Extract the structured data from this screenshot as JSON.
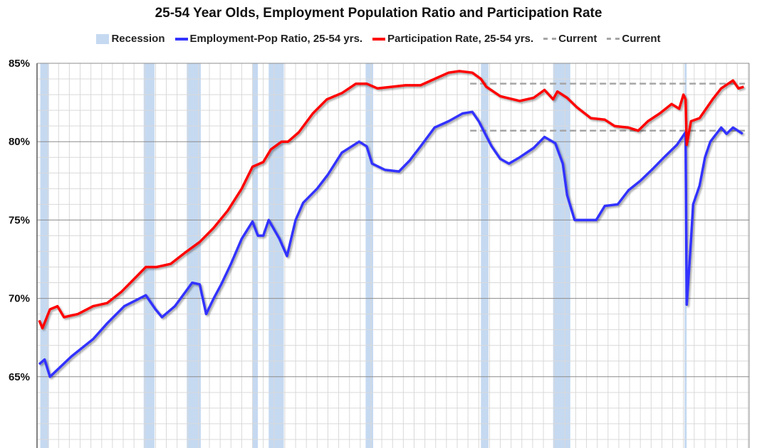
{
  "chart_data": {
    "type": "line",
    "title": "25-54 Year Olds, Employment Population Ratio and Participation Rate",
    "xlabel": "",
    "ylabel": "",
    "xlim": [
      1960,
      2026.1
    ],
    "ylim": [
      60,
      85
    ],
    "y_ticks": [
      "65%",
      "70%",
      "75%",
      "80%",
      "85%"
    ],
    "grid": true,
    "legend_placement": "top",
    "legend": [
      "Recession",
      "Employment-Pop Ratio, 25-54 yrs.",
      "Participation Rate, 25-54 yrs.",
      "Current",
      "Current"
    ],
    "colors": {
      "recession": "#c5d9f1",
      "epop": "#3333ff",
      "participation": "#ff0000",
      "current": "#a6a6a6"
    },
    "recessions": [
      [
        1960.3,
        1961.1
      ],
      [
        1969.9,
        1970.9
      ],
      [
        1973.9,
        1975.2
      ],
      [
        1980.0,
        1980.5
      ],
      [
        1981.5,
        1982.9
      ],
      [
        1990.5,
        1991.2
      ],
      [
        2001.2,
        2001.9
      ],
      [
        2007.9,
        2009.5
      ],
      [
        2020.1,
        2020.3
      ]
    ],
    "series": [
      {
        "name": "Employment-Pop Ratio, 25-54 yrs.",
        "color": "#3333ff",
        "x": [
          1960.2,
          1960.7,
          1961.2,
          1963.2,
          1965.2,
          1966.5,
          1968.1,
          1970.1,
          1971.0,
          1971.6,
          1972.8,
          1974.4,
          1975.1,
          1975.7,
          1976.4,
          1977.1,
          1978.0,
          1979.0,
          1980.0,
          1980.5,
          1981.0,
          1981.5,
          1982.5,
          1983.2,
          1984.0,
          1984.7,
          1986.0,
          1987.0,
          1988.3,
          1989.9,
          1990.6,
          1991.1,
          1992.3,
          1993.6,
          1994.6,
          1995.6,
          1996.9,
          1998.2,
          1999.5,
          2000.4,
          2001.0,
          2001.6,
          2002.2,
          2003.0,
          2003.8,
          2004.8,
          2006.1,
          2007.1,
          2008.1,
          2008.8,
          2009.2,
          2009.9,
          2011.0,
          2011.9,
          2012.7,
          2013.9,
          2014.9,
          2016.0,
          2017.2,
          2018.2,
          2019.4,
          2020.0,
          2020.2,
          2020.3,
          2020.7,
          2020.9,
          2021.5,
          2022.0,
          2022.5,
          2023.5,
          2024.0,
          2024.6,
          2025.5
        ],
        "y": [
          65.8,
          66.1,
          65.0,
          66.3,
          67.4,
          68.4,
          69.5,
          70.2,
          69.3,
          68.8,
          69.5,
          71.0,
          70.9,
          69.0,
          70.0,
          70.9,
          72.2,
          73.8,
          74.9,
          74.0,
          74.0,
          75.0,
          73.8,
          72.7,
          75.0,
          76.1,
          77.0,
          77.9,
          79.3,
          80.0,
          79.7,
          78.6,
          78.2,
          78.1,
          78.8,
          79.7,
          80.9,
          81.3,
          81.8,
          81.9,
          81.3,
          80.5,
          79.7,
          78.9,
          78.6,
          79.0,
          79.6,
          80.3,
          79.9,
          78.6,
          76.6,
          75.0,
          75.0,
          75.0,
          75.9,
          76.0,
          76.9,
          77.5,
          78.3,
          79.0,
          79.8,
          80.4,
          80.6,
          69.6,
          73.7,
          76.0,
          77.2,
          79.0,
          80.0,
          80.9,
          80.5,
          80.9,
          80.5
        ]
      },
      {
        "name": "Participation Rate, 25-54 yrs.",
        "color": "#ff0000",
        "x": [
          1960.2,
          1960.5,
          1961.2,
          1961.9,
          1962.5,
          1963.8,
          1965.2,
          1966.5,
          1967.8,
          1969.1,
          1970.1,
          1971.1,
          1972.4,
          1973.7,
          1975.1,
          1976.4,
          1977.7,
          1979.0,
          1980.0,
          1981.0,
          1981.7,
          1982.7,
          1983.3,
          1984.3,
          1985.6,
          1986.9,
          1988.3,
          1989.6,
          1990.6,
          1991.6,
          1992.9,
          1994.2,
          1995.6,
          1996.9,
          1998.2,
          1999.2,
          2000.4,
          2001.2,
          2001.7,
          2003.0,
          2004.8,
          2006.1,
          2007.1,
          2007.9,
          2008.3,
          2009.2,
          2010.1,
          2011.4,
          2012.7,
          2013.6,
          2014.9,
          2015.8,
          2016.7,
          2017.8,
          2018.9,
          2019.6,
          2020.0,
          2020.2,
          2020.3,
          2020.7,
          2021.5,
          2022.7,
          2023.5,
          2024.6,
          2025.1,
          2025.6
        ],
        "y": [
          68.6,
          68.1,
          69.3,
          69.5,
          68.8,
          69.0,
          69.5,
          69.7,
          70.4,
          71.3,
          72.0,
          72.0,
          72.2,
          72.9,
          73.6,
          74.5,
          75.6,
          77.0,
          78.4,
          78.7,
          79.5,
          80.0,
          80.0,
          80.6,
          81.8,
          82.7,
          83.1,
          83.7,
          83.7,
          83.4,
          83.5,
          83.6,
          83.6,
          84.0,
          84.4,
          84.5,
          84.4,
          84.0,
          83.5,
          82.9,
          82.6,
          82.8,
          83.3,
          82.7,
          83.2,
          82.8,
          82.2,
          81.5,
          81.4,
          81.0,
          80.9,
          80.7,
          81.3,
          81.8,
          82.4,
          82.1,
          83.0,
          82.7,
          79.8,
          81.3,
          81.5,
          82.7,
          83.4,
          83.9,
          83.4,
          83.5
        ]
      }
    ],
    "current_lines": [
      {
        "name": "Current",
        "value": 83.7,
        "from": 2000.2
      },
      {
        "name": "Current",
        "value": 80.7,
        "from": 2000.2
      }
    ]
  }
}
